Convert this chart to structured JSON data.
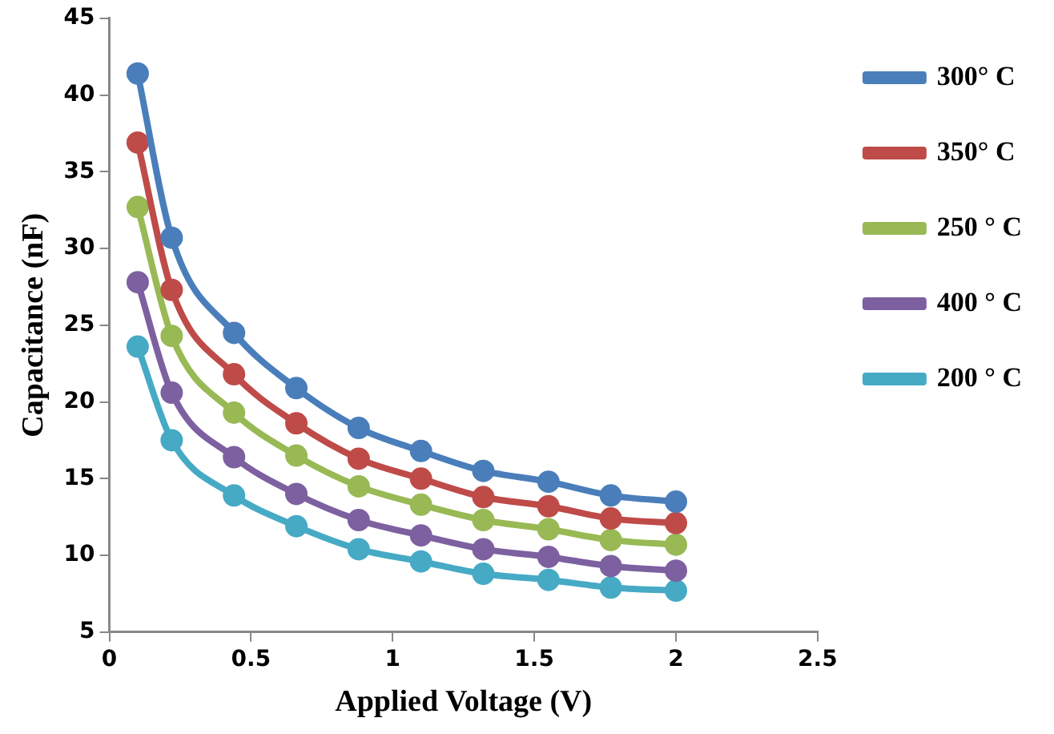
{
  "chart_data": {
    "type": "line",
    "xlabel": "Applied Voltage (V)",
    "ylabel": "Capacitance (nF)",
    "xlim": [
      0,
      2.5
    ],
    "xticks": [
      0,
      0.5,
      1,
      1.5,
      2,
      2.5
    ],
    "ylim": [
      5,
      45
    ],
    "yticks": [
      5,
      10,
      15,
      20,
      25,
      30,
      35,
      40,
      45
    ],
    "grid": false,
    "legend": "right",
    "marker": "circle",
    "line_style": "solid",
    "series": [
      {
        "name": "300° C",
        "color": "#4a7ebb",
        "x": [
          0.1,
          0.22,
          0.44,
          0.66,
          0.88,
          1.1,
          1.32,
          1.55,
          1.77,
          2.0
        ],
        "values": [
          41.4,
          30.7,
          24.5,
          20.9,
          18.3,
          16.8,
          15.5,
          14.8,
          13.9,
          13.5
        ]
      },
      {
        "name": "350° C",
        "color": "#be4b48",
        "x": [
          0.1,
          0.22,
          0.44,
          0.66,
          0.88,
          1.1,
          1.32,
          1.55,
          1.77,
          2.0
        ],
        "values": [
          36.9,
          27.3,
          21.8,
          18.6,
          16.3,
          15.0,
          13.8,
          13.2,
          12.4,
          12.1
        ]
      },
      {
        "name": "250 ° C",
        "color": "#98b954",
        "x": [
          0.1,
          0.22,
          0.44,
          0.66,
          0.88,
          1.1,
          1.32,
          1.55,
          1.77,
          2.0
        ],
        "values": [
          32.7,
          24.3,
          19.3,
          16.5,
          14.5,
          13.3,
          12.3,
          11.7,
          11.0,
          10.7
        ]
      },
      {
        "name": "400 ° C",
        "color": "#7d60a0",
        "x": [
          0.1,
          0.22,
          0.44,
          0.66,
          0.88,
          1.1,
          1.32,
          1.55,
          1.77,
          2.0
        ],
        "values": [
          27.8,
          20.6,
          16.4,
          14.0,
          12.3,
          11.3,
          10.4,
          9.9,
          9.3,
          9.0
        ]
      },
      {
        "name": "200 ° C",
        "color": "#46aac5",
        "x": [
          0.1,
          0.22,
          0.44,
          0.66,
          0.88,
          1.1,
          1.32,
          1.55,
          1.77,
          2.0
        ],
        "values": [
          23.6,
          17.5,
          13.9,
          11.9,
          10.4,
          9.6,
          8.8,
          8.4,
          7.9,
          7.7
        ]
      }
    ]
  }
}
